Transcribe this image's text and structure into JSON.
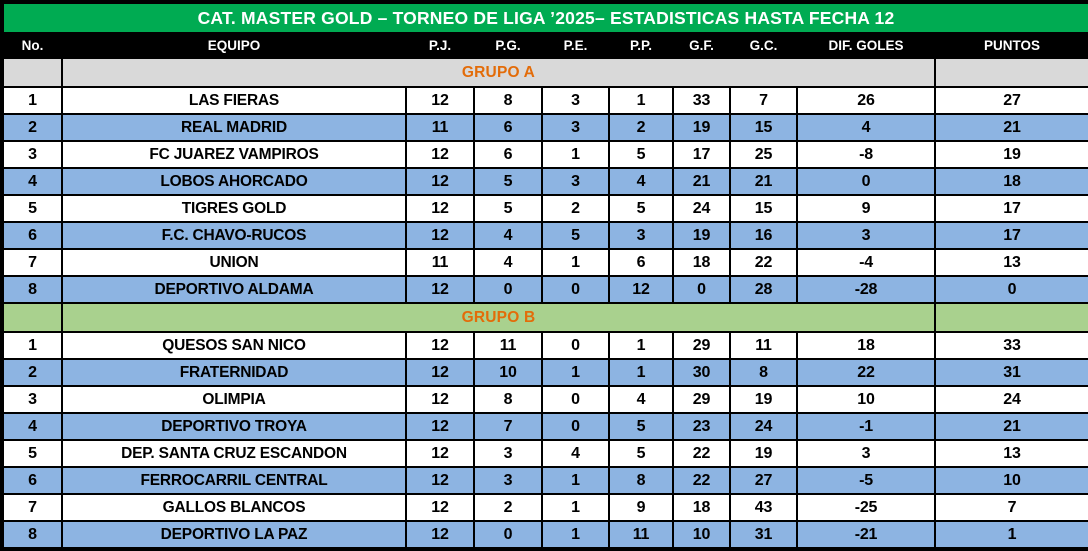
{
  "title": "CAT. MASTER GOLD – TORNEO DE LIGA ’2025– ESTADISTICAS HASTA FECHA 12",
  "columns": [
    "No.",
    "EQUIPO",
    "P.J.",
    "P.G.",
    "P.E.",
    "P.P.",
    "G.F.",
    "G.C.",
    "DIF. GOLES",
    "PUNTOS"
  ],
  "colors": {
    "title_bg": "#00AB52",
    "title_text": "#FFFFFF",
    "header_bg": "#000000",
    "header_text": "#FFFFFF",
    "row_bg": "#FFFFFF",
    "row_alt_bg": "#8DB4E2",
    "group_a_bg": "#D9D9D9",
    "group_b_bg": "#A9D18E",
    "group_label_text": "#E36C09",
    "border_color": "#000000",
    "text_color": "#000000"
  },
  "groups": [
    {
      "label": "GRUPO A",
      "teams": [
        [
          "1",
          "LAS FIERAS",
          "12",
          "8",
          "3",
          "1",
          "33",
          "7",
          "26",
          "27"
        ],
        [
          "2",
          "REAL MADRID",
          "11",
          "6",
          "3",
          "2",
          "19",
          "15",
          "4",
          "21"
        ],
        [
          "3",
          "FC JUAREZ VAMPIROS",
          "12",
          "6",
          "1",
          "5",
          "17",
          "25",
          "-8",
          "19"
        ],
        [
          "4",
          "LOBOS AHORCADO",
          "12",
          "5",
          "3",
          "4",
          "21",
          "21",
          "0",
          "18"
        ],
        [
          "5",
          "TIGRES GOLD",
          "12",
          "5",
          "2",
          "5",
          "24",
          "15",
          "9",
          "17"
        ],
        [
          "6",
          "F.C. CHAVO-RUCOS",
          "12",
          "4",
          "5",
          "3",
          "19",
          "16",
          "3",
          "17"
        ],
        [
          "7",
          "UNION",
          "11",
          "4",
          "1",
          "6",
          "18",
          "22",
          "-4",
          "13"
        ],
        [
          "8",
          "DEPORTIVO ALDAMA",
          "12",
          "0",
          "0",
          "12",
          "0",
          "28",
          "-28",
          "0"
        ]
      ]
    },
    {
      "label": "GRUPO B",
      "teams": [
        [
          "1",
          "QUESOS SAN NICO",
          "12",
          "11",
          "0",
          "1",
          "29",
          "11",
          "18",
          "33"
        ],
        [
          "2",
          "FRATERNIDAD",
          "12",
          "10",
          "1",
          "1",
          "30",
          "8",
          "22",
          "31"
        ],
        [
          "3",
          "OLIMPIA",
          "12",
          "8",
          "0",
          "4",
          "29",
          "19",
          "10",
          "24"
        ],
        [
          "4",
          "DEPORTIVO TROYA",
          "12",
          "7",
          "0",
          "5",
          "23",
          "24",
          "-1",
          "21"
        ],
        [
          "5",
          "DEP. SANTA CRUZ ESCANDON",
          "12",
          "3",
          "4",
          "5",
          "22",
          "19",
          "3",
          "13"
        ],
        [
          "6",
          "FERROCARRIL CENTRAL",
          "12",
          "3",
          "1",
          "8",
          "22",
          "27",
          "-5",
          "10"
        ],
        [
          "7",
          "GALLOS BLANCOS",
          "12",
          "2",
          "1",
          "9",
          "18",
          "43",
          "-25",
          "7"
        ],
        [
          "8",
          "DEPORTIVO LA PAZ",
          "12",
          "0",
          "1",
          "11",
          "10",
          "31",
          "-21",
          "1"
        ]
      ]
    }
  ]
}
